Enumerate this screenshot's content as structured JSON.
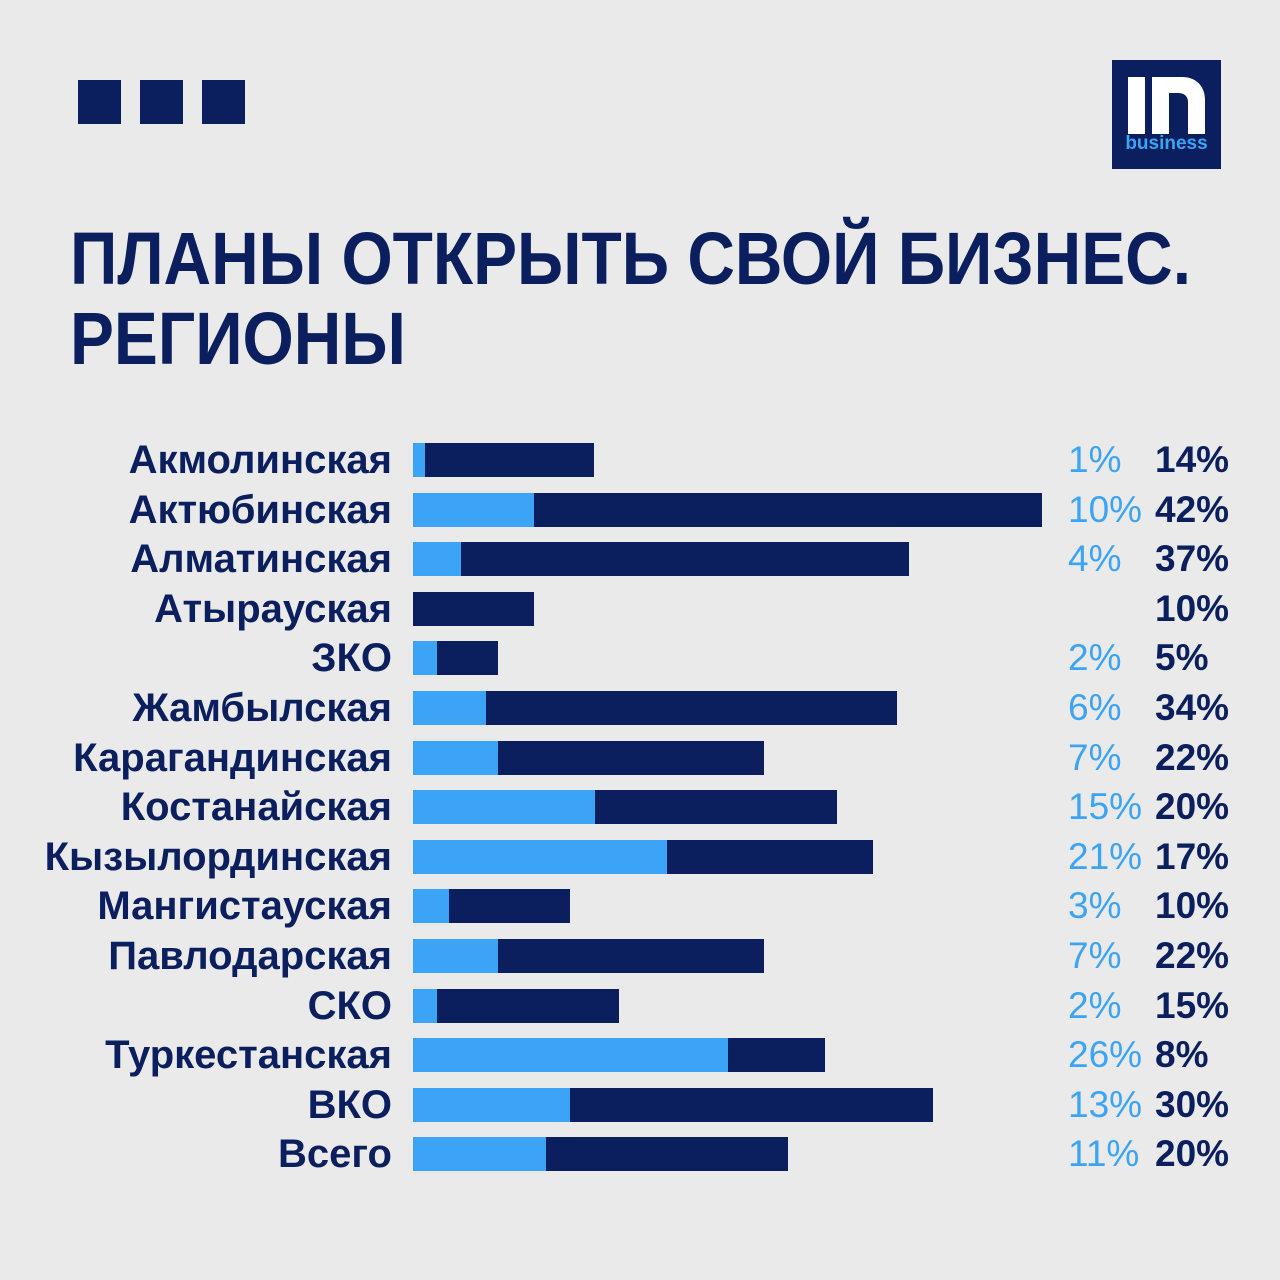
{
  "colors": {
    "background": "#eaeaea",
    "navy": "#0b1f5e",
    "accent": "#3ba4f6"
  },
  "logo": {
    "mark": "In",
    "sub": "business"
  },
  "chart_data": {
    "type": "bar",
    "orientation": "horizontal",
    "stacked": true,
    "title": "ПЛАНЫ ОТКРЫТЬ СВОЙ БИЗНЕС.\nРЕГИОНЫ",
    "categories": [
      "Акмолинская",
      "Актюбинская",
      "Алматинская",
      "Атырауская",
      "ЗКО",
      "Жамбылская",
      "Карагандинская",
      "Костанайская",
      "Кызылординская",
      "Мангистауская",
      "Павлодарская",
      "СКО",
      "Туркестанская",
      "ВКО",
      "Всего"
    ],
    "unit": "%",
    "series": [
      {
        "color": "#3ba4f6",
        "values": [
          1,
          10,
          4,
          null,
          2,
          6,
          7,
          15,
          21,
          3,
          7,
          2,
          26,
          13,
          11
        ]
      },
      {
        "color": "#0b1f5e",
        "values": [
          14,
          42,
          37,
          10,
          5,
          34,
          22,
          20,
          17,
          10,
          22,
          15,
          8,
          30,
          20
        ]
      }
    ],
    "grid": false,
    "legend": "none"
  }
}
